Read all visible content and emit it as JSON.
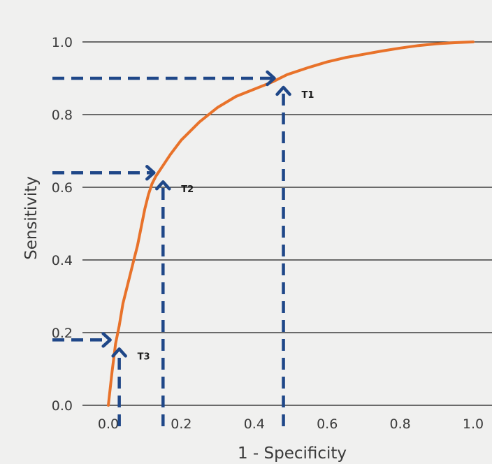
{
  "chart_data": {
    "type": "line",
    "xlabel": "1 - Specificity",
    "ylabel": "Sensitivity",
    "xlim": [
      0,
      1
    ],
    "ylim": [
      0,
      1
    ],
    "x_ticks": [
      "0.0",
      "0.2",
      "0.4",
      "0.6",
      "0.8",
      "1.0"
    ],
    "y_ticks": [
      "0.0",
      "0.2",
      "0.4",
      "0.6",
      "0.8",
      "1.0"
    ],
    "grid": "horizontal",
    "series": [
      {
        "color": "#e8722a",
        "x": [
          0.0,
          0.01,
          0.02,
          0.03,
          0.04,
          0.05,
          0.06,
          0.07,
          0.08,
          0.09,
          0.1,
          0.11,
          0.12,
          0.13,
          0.15,
          0.17,
          0.2,
          0.25,
          0.3,
          0.35,
          0.4,
          0.45,
          0.49,
          0.55,
          0.6,
          0.65,
          0.7,
          0.75,
          0.8,
          0.85,
          0.9,
          0.95,
          1.0
        ],
        "y": [
          0.0,
          0.09,
          0.17,
          0.22,
          0.28,
          0.32,
          0.36,
          0.4,
          0.44,
          0.49,
          0.54,
          0.58,
          0.61,
          0.63,
          0.66,
          0.69,
          0.73,
          0.78,
          0.82,
          0.85,
          0.87,
          0.89,
          0.91,
          0.93,
          0.945,
          0.957,
          0.966,
          0.975,
          0.983,
          0.99,
          0.995,
          0.998,
          1.0
        ]
      }
    ],
    "thresholds": [
      {
        "label": "T1",
        "x": 0.48,
        "y": 0.9
      },
      {
        "label": "T2",
        "x": 0.15,
        "y": 0.64
      },
      {
        "label": "T3",
        "x": 0.03,
        "y": 0.18
      }
    ],
    "threshold_color": "#1f4788"
  }
}
